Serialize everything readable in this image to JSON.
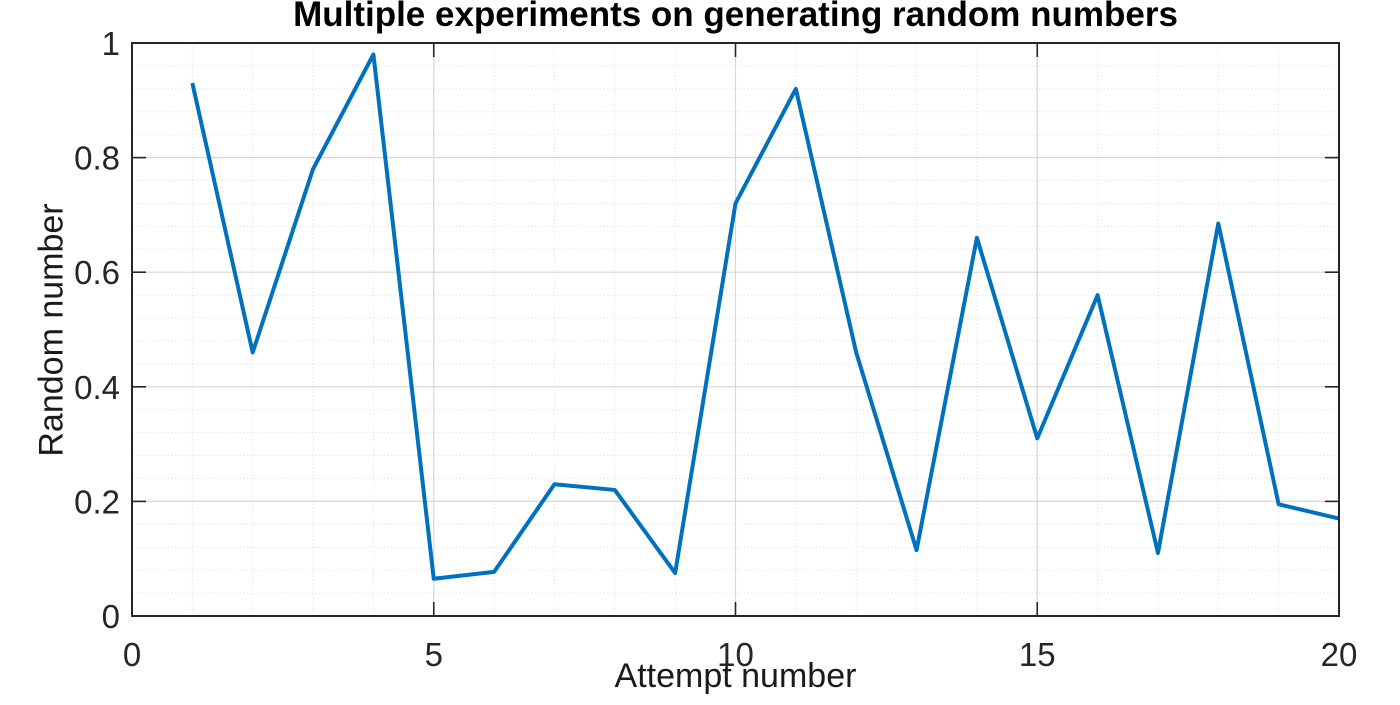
{
  "chart_data": {
    "type": "line",
    "title": "Multiple experiments on generating random numbers",
    "xlabel": "Attempt number",
    "ylabel": "Random number",
    "x": [
      1,
      2,
      3,
      4,
      5,
      6,
      7,
      8,
      9,
      10,
      11,
      12,
      13,
      14,
      15,
      16,
      17,
      18,
      19,
      20
    ],
    "y": [
      0.93,
      0.46,
      0.78,
      0.98,
      0.065,
      0.077,
      0.23,
      0.22,
      0.075,
      0.72,
      0.92,
      0.46,
      0.115,
      0.66,
      0.31,
      0.56,
      0.11,
      0.685,
      0.195,
      0.17
    ],
    "xlim": [
      0,
      20
    ],
    "ylim": [
      0,
      1
    ],
    "xticks": {
      "values": [
        0,
        5,
        10,
        15,
        20
      ],
      "labels": [
        "0",
        "5",
        "10",
        "15",
        "20"
      ]
    },
    "yticks": {
      "values": [
        0,
        0.2,
        0.4,
        0.6,
        0.8,
        1
      ],
      "labels": [
        "0",
        "0.2",
        "0.4",
        "0.6",
        "0.8",
        "1"
      ]
    },
    "minor_grid": {
      "x_step": 1,
      "y_step": 0.04,
      "style": "dotted"
    },
    "grid": "on",
    "legend": "none",
    "line_width": 4,
    "tick_direction": "in",
    "colors": {
      "line": "#0072BD",
      "axis": "#262626",
      "grid_major": "#d7d7d7",
      "grid_minor": "#dcdcdc",
      "text": "#262626",
      "title": "#000000",
      "background": "#ffffff"
    }
  }
}
